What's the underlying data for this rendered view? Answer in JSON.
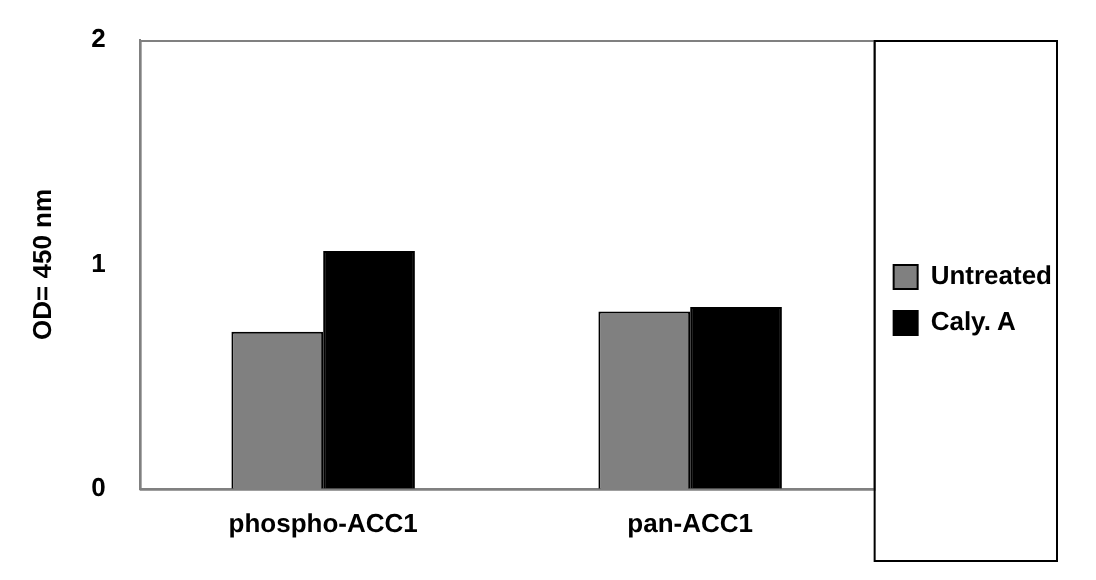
{
  "chart_data": {
    "type": "bar",
    "ylabel": "OD= 450 nm",
    "categories": [
      "phospho-ACC1",
      "pan-ACC1"
    ],
    "series": [
      {
        "name": "Untreated",
        "color": "#808080",
        "values": [
          0.7,
          0.79
        ]
      },
      {
        "name": "Caly. A",
        "color": "#000000",
        "values": [
          1.06,
          0.81
        ]
      }
    ],
    "ylim": [
      0,
      2
    ],
    "yticks": [
      0,
      1,
      2
    ],
    "grid": false,
    "legend": "right"
  }
}
